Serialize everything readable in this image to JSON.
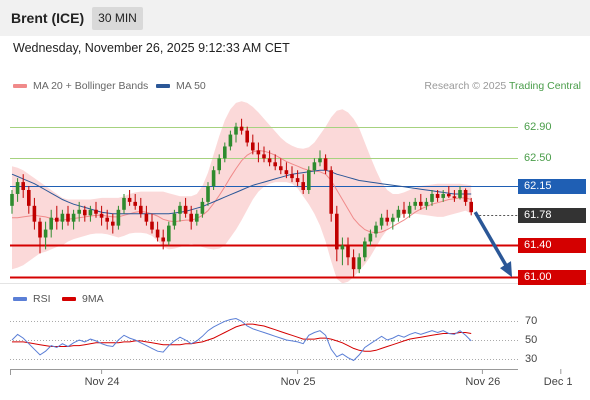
{
  "header": {
    "title": "Brent (ICE)",
    "timeframe": "30 MIN"
  },
  "datetime": "Wednesday, November 26, 2025 9:12:33 AM CET",
  "legend": {
    "ma20": {
      "label": "MA 20 + Bollinger Bands",
      "color": "#f08a8a"
    },
    "ma50": {
      "label": "MA 50",
      "color": "#2b5797"
    }
  },
  "credit": {
    "prefix": "Research © 2025 ",
    "brand": "Trading Central"
  },
  "colors": {
    "up": "#2e8b2e",
    "down": "#c00000",
    "band": "#fbd9d9",
    "ma20": "#f08a8a",
    "ma50": "#2b5797",
    "resistance": "#a6d27f",
    "pivot": "#1f5fb4",
    "support": "#d40000",
    "current": "#333333",
    "arrow": "#2b5797",
    "rsi": "#5b7fd6",
    "rsi_ma": "#d40000"
  },
  "levels": [
    {
      "value": 62.9,
      "label": "62.90",
      "kind": "resistance"
    },
    {
      "value": 62.5,
      "label": "62.50",
      "kind": "resistance"
    },
    {
      "value": 62.15,
      "label": "62.15",
      "kind": "pivot"
    },
    {
      "value": 61.78,
      "label": "61.78",
      "kind": "current"
    },
    {
      "value": 61.4,
      "label": "61.40",
      "kind": "support"
    },
    {
      "value": 61.0,
      "label": "61.00",
      "kind": "support"
    }
  ],
  "chart_data": {
    "type": "candlestick",
    "timeframe": "30 MIN",
    "ylim": [
      60.9,
      63.3
    ],
    "x_labels": [
      "Nov 24",
      "Nov 25",
      "Nov 26",
      "Dec 1"
    ],
    "x_label_index": [
      16,
      51,
      84,
      98
    ],
    "candles": [
      [
        61.9,
        62.1,
        61.8,
        62.05
      ],
      [
        62.05,
        62.25,
        61.95,
        62.2
      ],
      [
        62.2,
        62.3,
        62.0,
        62.1
      ],
      [
        62.1,
        62.15,
        61.8,
        61.9
      ],
      [
        61.9,
        62.0,
        61.6,
        61.7
      ],
      [
        61.7,
        61.75,
        61.3,
        61.5
      ],
      [
        61.5,
        61.7,
        61.35,
        61.6
      ],
      [
        61.6,
        61.85,
        61.5,
        61.75
      ],
      [
        61.75,
        61.9,
        61.6,
        61.7
      ],
      [
        61.7,
        61.85,
        61.6,
        61.8
      ],
      [
        61.8,
        61.9,
        61.65,
        61.7
      ],
      [
        61.7,
        61.85,
        61.6,
        61.8
      ],
      [
        61.8,
        61.95,
        61.7,
        61.85
      ],
      [
        61.85,
        61.9,
        61.7,
        61.78
      ],
      [
        61.78,
        61.9,
        61.7,
        61.85
      ],
      [
        61.85,
        61.95,
        61.75,
        61.8
      ],
      [
        61.8,
        61.9,
        61.65,
        61.75
      ],
      [
        61.75,
        61.85,
        61.6,
        61.7
      ],
      [
        61.7,
        61.8,
        61.55,
        61.65
      ],
      [
        61.65,
        61.9,
        61.6,
        61.85
      ],
      [
        61.85,
        62.05,
        61.8,
        62.0
      ],
      [
        62.0,
        62.1,
        61.9,
        61.95
      ],
      [
        61.95,
        62.05,
        61.85,
        61.9
      ],
      [
        61.9,
        62.0,
        61.75,
        61.8
      ],
      [
        61.8,
        61.9,
        61.65,
        61.7
      ],
      [
        61.7,
        61.8,
        61.55,
        61.6
      ],
      [
        61.6,
        61.7,
        61.45,
        61.5
      ],
      [
        61.5,
        61.6,
        61.35,
        61.45
      ],
      [
        61.45,
        61.7,
        61.4,
        61.65
      ],
      [
        61.65,
        61.85,
        61.6,
        61.8
      ],
      [
        61.8,
        61.95,
        61.7,
        61.9
      ],
      [
        61.9,
        62.0,
        61.75,
        61.8
      ],
      [
        61.8,
        61.9,
        61.6,
        61.7
      ],
      [
        61.7,
        61.85,
        61.65,
        61.8
      ],
      [
        61.8,
        62.0,
        61.75,
        61.95
      ],
      [
        61.95,
        62.2,
        61.9,
        62.15
      ],
      [
        62.15,
        62.4,
        62.1,
        62.35
      ],
      [
        62.35,
        62.55,
        62.3,
        62.5
      ],
      [
        62.5,
        62.7,
        62.45,
        62.65
      ],
      [
        62.65,
        62.85,
        62.6,
        62.8
      ],
      [
        62.8,
        62.95,
        62.7,
        62.9
      ],
      [
        62.9,
        63.0,
        62.8,
        62.85
      ],
      [
        62.85,
        62.9,
        62.65,
        62.7
      ],
      [
        62.7,
        62.8,
        62.55,
        62.6
      ],
      [
        62.6,
        62.7,
        62.45,
        62.55
      ],
      [
        62.55,
        62.65,
        62.45,
        62.5
      ],
      [
        62.5,
        62.6,
        62.4,
        62.45
      ],
      [
        62.45,
        62.55,
        62.35,
        62.4
      ],
      [
        62.4,
        62.5,
        62.3,
        62.35
      ],
      [
        62.35,
        62.45,
        62.25,
        62.3
      ],
      [
        62.3,
        62.4,
        62.2,
        62.25
      ],
      [
        62.25,
        62.35,
        62.15,
        62.2
      ],
      [
        62.2,
        62.3,
        62.05,
        62.1
      ],
      [
        62.1,
        62.4,
        62.05,
        62.35
      ],
      [
        62.35,
        62.5,
        62.3,
        62.45
      ],
      [
        62.45,
        62.6,
        62.4,
        62.5
      ],
      [
        62.5,
        62.55,
        62.3,
        62.35
      ],
      [
        62.35,
        62.4,
        61.7,
        61.8
      ],
      [
        61.8,
        61.9,
        61.2,
        61.35
      ],
      [
        61.35,
        61.5,
        61.15,
        61.4
      ],
      [
        61.4,
        61.5,
        61.15,
        61.25
      ],
      [
        61.25,
        61.35,
        61.0,
        61.1
      ],
      [
        61.1,
        61.3,
        61.05,
        61.25
      ],
      [
        61.25,
        61.5,
        61.2,
        61.45
      ],
      [
        61.45,
        61.6,
        61.4,
        61.55
      ],
      [
        61.55,
        61.7,
        61.5,
        61.65
      ],
      [
        61.65,
        61.8,
        61.6,
        61.75
      ],
      [
        61.75,
        61.85,
        61.65,
        61.7
      ],
      [
        61.7,
        61.8,
        61.6,
        61.75
      ],
      [
        61.75,
        61.9,
        61.7,
        61.85
      ],
      [
        61.85,
        61.95,
        61.75,
        61.8
      ],
      [
        61.8,
        61.95,
        61.75,
        61.9
      ],
      [
        61.9,
        62.0,
        61.85,
        61.95
      ],
      [
        61.95,
        62.05,
        61.85,
        61.9
      ],
      [
        61.9,
        62.0,
        61.85,
        61.95
      ],
      [
        61.95,
        62.1,
        61.9,
        62.05
      ],
      [
        62.05,
        62.1,
        61.95,
        62.0
      ],
      [
        62.0,
        62.1,
        61.95,
        62.05
      ],
      [
        62.05,
        62.15,
        62.0,
        62.02
      ],
      [
        62.02,
        62.1,
        61.95,
        62.0
      ],
      [
        62.0,
        62.15,
        61.98,
        62.1
      ],
      [
        62.1,
        62.12,
        61.9,
        61.95
      ],
      [
        61.95,
        62.0,
        61.78,
        61.82
      ]
    ],
    "ma20": [
      61.75,
      61.75,
      61.76,
      61.77,
      61.78,
      61.77,
      61.76,
      61.74,
      61.72,
      61.72,
      61.73,
      61.74,
      61.75,
      61.76,
      61.77,
      61.78,
      61.78,
      61.77,
      61.76,
      61.76,
      61.78,
      61.8,
      61.82,
      61.83,
      61.82,
      61.8,
      61.77,
      61.73,
      61.71,
      61.7,
      61.71,
      61.72,
      61.72,
      61.74,
      61.78,
      61.84,
      61.93,
      62.03,
      62.14,
      62.26,
      62.37,
      62.47,
      62.54,
      62.58,
      62.6,
      62.59,
      62.57,
      62.54,
      62.5,
      62.46,
      62.43,
      62.4,
      62.37,
      62.35,
      62.34,
      62.33,
      62.3,
      62.22,
      62.1,
      61.98,
      61.86,
      61.74,
      61.66,
      61.6,
      61.57,
      61.56,
      61.57,
      61.6,
      61.64,
      61.68,
      61.72,
      61.77,
      61.82,
      61.86,
      61.89,
      61.92,
      61.94,
      61.96,
      61.98,
      61.99,
      62.0,
      62.0,
      61.98
    ],
    "band_upper": [
      62.4,
      62.38,
      62.35,
      62.3,
      62.25,
      62.2,
      62.15,
      62.1,
      62.05,
      62.0,
      61.98,
      61.98,
      61.98,
      61.98,
      61.98,
      61.99,
      62.0,
      62.0,
      62.0,
      62.0,
      62.02,
      62.05,
      62.07,
      62.08,
      62.08,
      62.08,
      62.08,
      62.08,
      62.06,
      62.04,
      62.02,
      62.02,
      62.02,
      62.05,
      62.15,
      62.32,
      62.55,
      62.78,
      62.98,
      63.12,
      63.2,
      63.22,
      63.2,
      63.15,
      63.08,
      63.0,
      62.92,
      62.84,
      62.76,
      62.7,
      62.66,
      62.63,
      62.62,
      62.64,
      62.7,
      62.8,
      62.9,
      63.02,
      63.1,
      63.12,
      63.08,
      63.0,
      62.88,
      62.7,
      62.52,
      62.35,
      62.2,
      62.1,
      62.05,
      62.05,
      62.07,
      62.1,
      62.13,
      62.15,
      62.16,
      62.17,
      62.18,
      62.18,
      62.18,
      62.18,
      62.18,
      62.17,
      62.16
    ],
    "band_lower": [
      61.1,
      61.12,
      61.15,
      61.2,
      61.25,
      61.3,
      61.32,
      61.35,
      61.38,
      61.4,
      61.45,
      61.48,
      61.5,
      61.52,
      61.54,
      61.55,
      61.55,
      61.54,
      61.52,
      61.5,
      61.52,
      61.55,
      61.56,
      61.56,
      61.55,
      61.52,
      61.46,
      61.38,
      61.35,
      61.36,
      61.38,
      61.4,
      61.42,
      61.4,
      61.38,
      61.36,
      61.35,
      61.36,
      61.4,
      61.5,
      61.6,
      61.72,
      61.85,
      61.98,
      62.08,
      62.14,
      62.18,
      62.2,
      62.2,
      62.2,
      62.18,
      62.12,
      62.02,
      61.92,
      61.8,
      61.65,
      61.45,
      61.2,
      60.98,
      60.92,
      60.94,
      61.0,
      61.08,
      61.16,
      61.26,
      61.38,
      61.5,
      61.6,
      61.7,
      61.76,
      61.8,
      61.8,
      61.8,
      61.79,
      61.78,
      61.77,
      61.76,
      61.76,
      61.78,
      61.8,
      61.82,
      61.84,
      61.8
    ],
    "ma50": [
      62.3,
      62.27,
      62.24,
      62.21,
      62.18,
      62.14,
      62.1,
      62.06,
      62.02,
      61.98,
      61.95,
      61.92,
      61.9,
      61.88,
      61.86,
      61.84,
      61.82,
      61.81,
      61.8,
      61.8,
      61.8,
      61.8,
      61.8,
      61.8,
      61.8,
      61.8,
      61.8,
      61.8,
      61.8,
      61.81,
      61.82,
      61.83,
      61.85,
      61.87,
      61.89,
      61.92,
      61.95,
      61.98,
      62.01,
      62.04,
      62.07,
      62.1,
      62.13,
      62.16,
      62.18,
      62.2,
      62.22,
      62.24,
      62.26,
      62.28,
      62.3,
      62.31,
      62.32,
      62.33,
      62.34,
      62.35,
      62.35,
      62.33,
      62.3,
      62.28,
      62.26,
      62.24,
      62.22,
      62.21,
      62.2,
      62.19,
      62.18,
      62.17,
      62.16,
      62.15,
      62.14,
      62.13,
      62.12,
      62.11,
      62.1,
      62.09,
      62.08,
      62.07,
      62.06,
      62.05,
      62.05,
      62.05,
      62.05
    ],
    "forecast": {
      "from": 61.82,
      "to": 61.0
    },
    "rsi": {
      "legend": {
        "rsi": "RSI",
        "ma": "9MA"
      },
      "ticks": [
        70,
        50,
        30
      ],
      "ylim": [
        20,
        80
      ],
      "values": [
        50,
        56,
        52,
        46,
        40,
        34,
        38,
        44,
        42,
        46,
        43,
        47,
        50,
        48,
        51,
        49,
        46,
        44,
        43,
        50,
        55,
        52,
        50,
        47,
        44,
        41,
        38,
        37,
        44,
        49,
        53,
        50,
        46,
        49,
        54,
        60,
        64,
        67,
        70,
        72,
        73,
        70,
        65,
        62,
        60,
        58,
        56,
        54,
        52,
        50,
        49,
        48,
        46,
        55,
        58,
        60,
        55,
        40,
        32,
        35,
        31,
        28,
        34,
        42,
        46,
        50,
        54,
        50,
        52,
        55,
        53,
        56,
        58,
        56,
        58,
        60,
        58,
        60,
        57,
        56,
        60,
        55,
        49
      ],
      "ma": [
        48,
        48,
        48,
        47,
        46,
        45,
        44,
        43,
        43,
        43,
        43,
        44,
        44,
        45,
        46,
        47,
        47,
        47,
        47,
        47,
        48,
        48,
        49,
        49,
        48,
        47,
        46,
        45,
        45,
        45,
        45,
        46,
        46,
        47,
        48,
        50,
        52,
        55,
        58,
        61,
        64,
        66,
        67,
        67,
        66,
        65,
        63,
        61,
        59,
        57,
        55,
        53,
        51,
        51,
        51,
        52,
        52,
        51,
        49,
        47,
        44,
        41,
        39,
        38,
        38,
        39,
        41,
        43,
        45,
        47,
        49,
        51,
        52,
        53,
        54,
        55,
        56,
        57,
        57,
        57,
        58,
        58,
        57
      ]
    }
  }
}
